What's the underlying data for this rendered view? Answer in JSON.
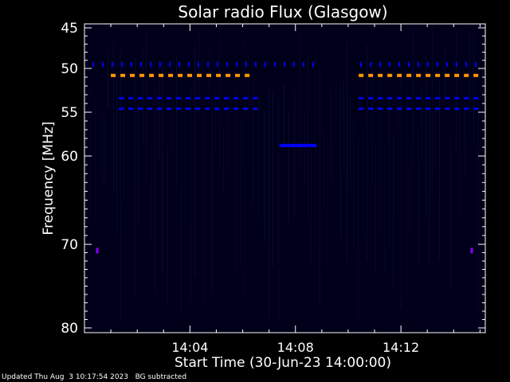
{
  "chart_data": {
    "type": "heatmap",
    "title": "Solar radio Flux (Glasgow)",
    "xlabel": "Start Time (30-Jun-23 14:00:00)",
    "ylabel": "Frequency [MHz]",
    "x_unit": "minutes after 14:00:00",
    "xlim": [
      0,
      15.2
    ],
    "ylim": [
      45,
      80
    ],
    "y_inverted": true,
    "y_ticks": [
      45,
      50,
      55,
      60,
      70,
      80
    ],
    "y_tick_labels": [
      "45",
      "50",
      "55",
      "60",
      "70",
      "80"
    ],
    "x_ticks": [
      4,
      8,
      12
    ],
    "x_tick_labels": [
      "14:04",
      "14:08",
      "14:12"
    ],
    "grid": false,
    "colors": {
      "background": "#000000",
      "plot_background": "#00001a",
      "axes": "#ffffff",
      "weak_signal": "#0000ff",
      "strong_signal": "#ff9900",
      "noise": "#0a0a36"
    },
    "features": [
      {
        "kind": "dash-line",
        "freq": 49.6,
        "x_start": 0.3,
        "x_end": 15.0,
        "gap_start": 9.0,
        "gap_end": 10.4,
        "level": "weak"
      },
      {
        "kind": "dash-line",
        "freq": 50.8,
        "x_start": 1.0,
        "x_end": 6.4,
        "level": "strong"
      },
      {
        "kind": "dash-line",
        "freq": 50.8,
        "x_start": 10.4,
        "x_end": 15.0,
        "level": "strong"
      },
      {
        "kind": "dash-line",
        "freq": 53.4,
        "x_start": 1.3,
        "x_end": 6.4,
        "level": "weak"
      },
      {
        "kind": "dash-line",
        "freq": 53.4,
        "x_start": 10.4,
        "x_end": 15.0,
        "level": "weak"
      },
      {
        "kind": "dash-line",
        "freq": 54.6,
        "x_start": 1.3,
        "x_end": 6.4,
        "level": "weak"
      },
      {
        "kind": "dash-line",
        "freq": 54.6,
        "x_start": 10.4,
        "x_end": 15.0,
        "level": "weak"
      },
      {
        "kind": "segment",
        "freq": 58.8,
        "x_start": 7.4,
        "x_end": 8.8,
        "level": "weak"
      },
      {
        "kind": "spot",
        "freq": 70.8,
        "x": 0.5,
        "level": "weak"
      },
      {
        "kind": "spot",
        "freq": 70.8,
        "x": 14.7,
        "level": "weak"
      }
    ]
  },
  "footer": {
    "updated": "Updated Thu Aug  3 10:17:54 2023",
    "note": "BG subtracted"
  }
}
